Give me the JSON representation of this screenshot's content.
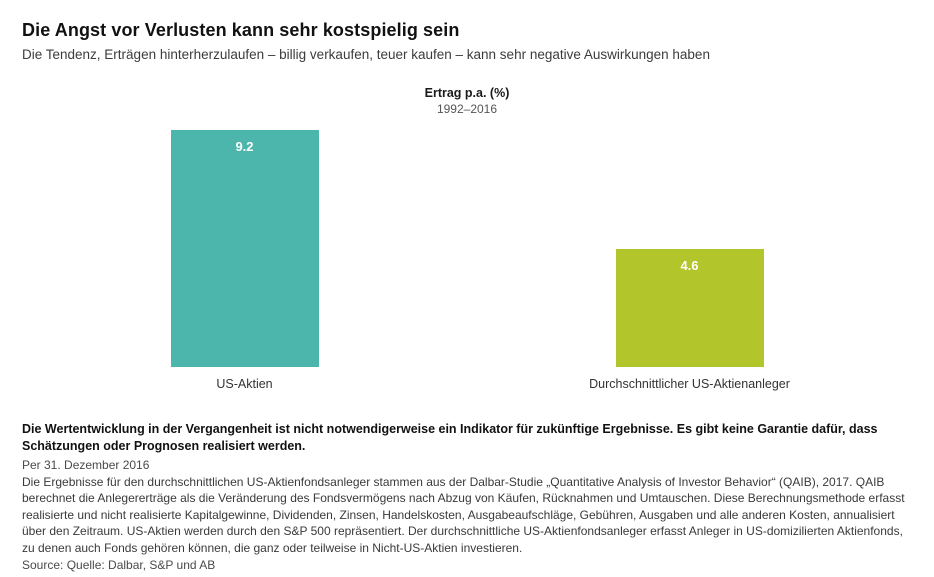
{
  "page": {
    "title": "Die Angst vor Verlusten kann sehr kostspielig sein",
    "subtitle": "Die Tendenz, Erträgen hinterherzulaufen – billig verkaufen, teuer kaufen – kann sehr negative Auswirkungen haben"
  },
  "chart_data": {
    "type": "bar",
    "title": "Ertrag p.a. (%)",
    "subtitle": "1992–2016",
    "categories": [
      "US-Aktien",
      "Durchschnittlicher US-Aktienanleger"
    ],
    "values": [
      9.2,
      4.6
    ],
    "value_labels": [
      "9.2",
      "4.6"
    ],
    "colors": [
      "#4CB5AC",
      "#B2C52B"
    ],
    "value_label_color": "#ffffff",
    "ylim": [
      0,
      9.2
    ],
    "grid": false,
    "axes_hidden": true,
    "legend": "none"
  },
  "footnotes": {
    "disclaimer_bold": "Die Wertentwicklung in der Vergangenheit ist nicht notwendigerweise ein Indikator für zukünftige Ergebnisse. Es gibt keine Garantie dafür, dass Schätzungen oder Prognosen realisiert werden.",
    "as_of": "Per 31. Dezember 2016",
    "methodology": "Die Ergebnisse für den durchschnittlichen US-Aktienfondsanleger stammen aus der Dalbar-Studie „Quantitative Analysis of Investor Behavior“ (QAIB), 2017. QAIB berechnet die Anlegererträge als die Veränderung des Fondsvermögens nach Abzug von Käufen, Rücknahmen und Umtauschen. Diese Berechnungsmethode erfasst realisierte und nicht realisierte Kapitalgewinne, Dividenden, Zinsen, Handelskosten, Ausgabeaufschläge, Gebühren, Ausgaben und alle anderen Kosten, annualisiert über den Zeitraum. US-Aktien werden durch den S&P 500 repräsentiert. Der durchschnittliche US-Aktienfondsanleger erfasst Anleger in US-domizilierten Aktienfonds, zu denen auch Fonds gehören können, die ganz oder teilweise in Nicht-US-Aktien investieren.",
    "source": "Source: Quelle: Dalbar, S&P und AB"
  }
}
